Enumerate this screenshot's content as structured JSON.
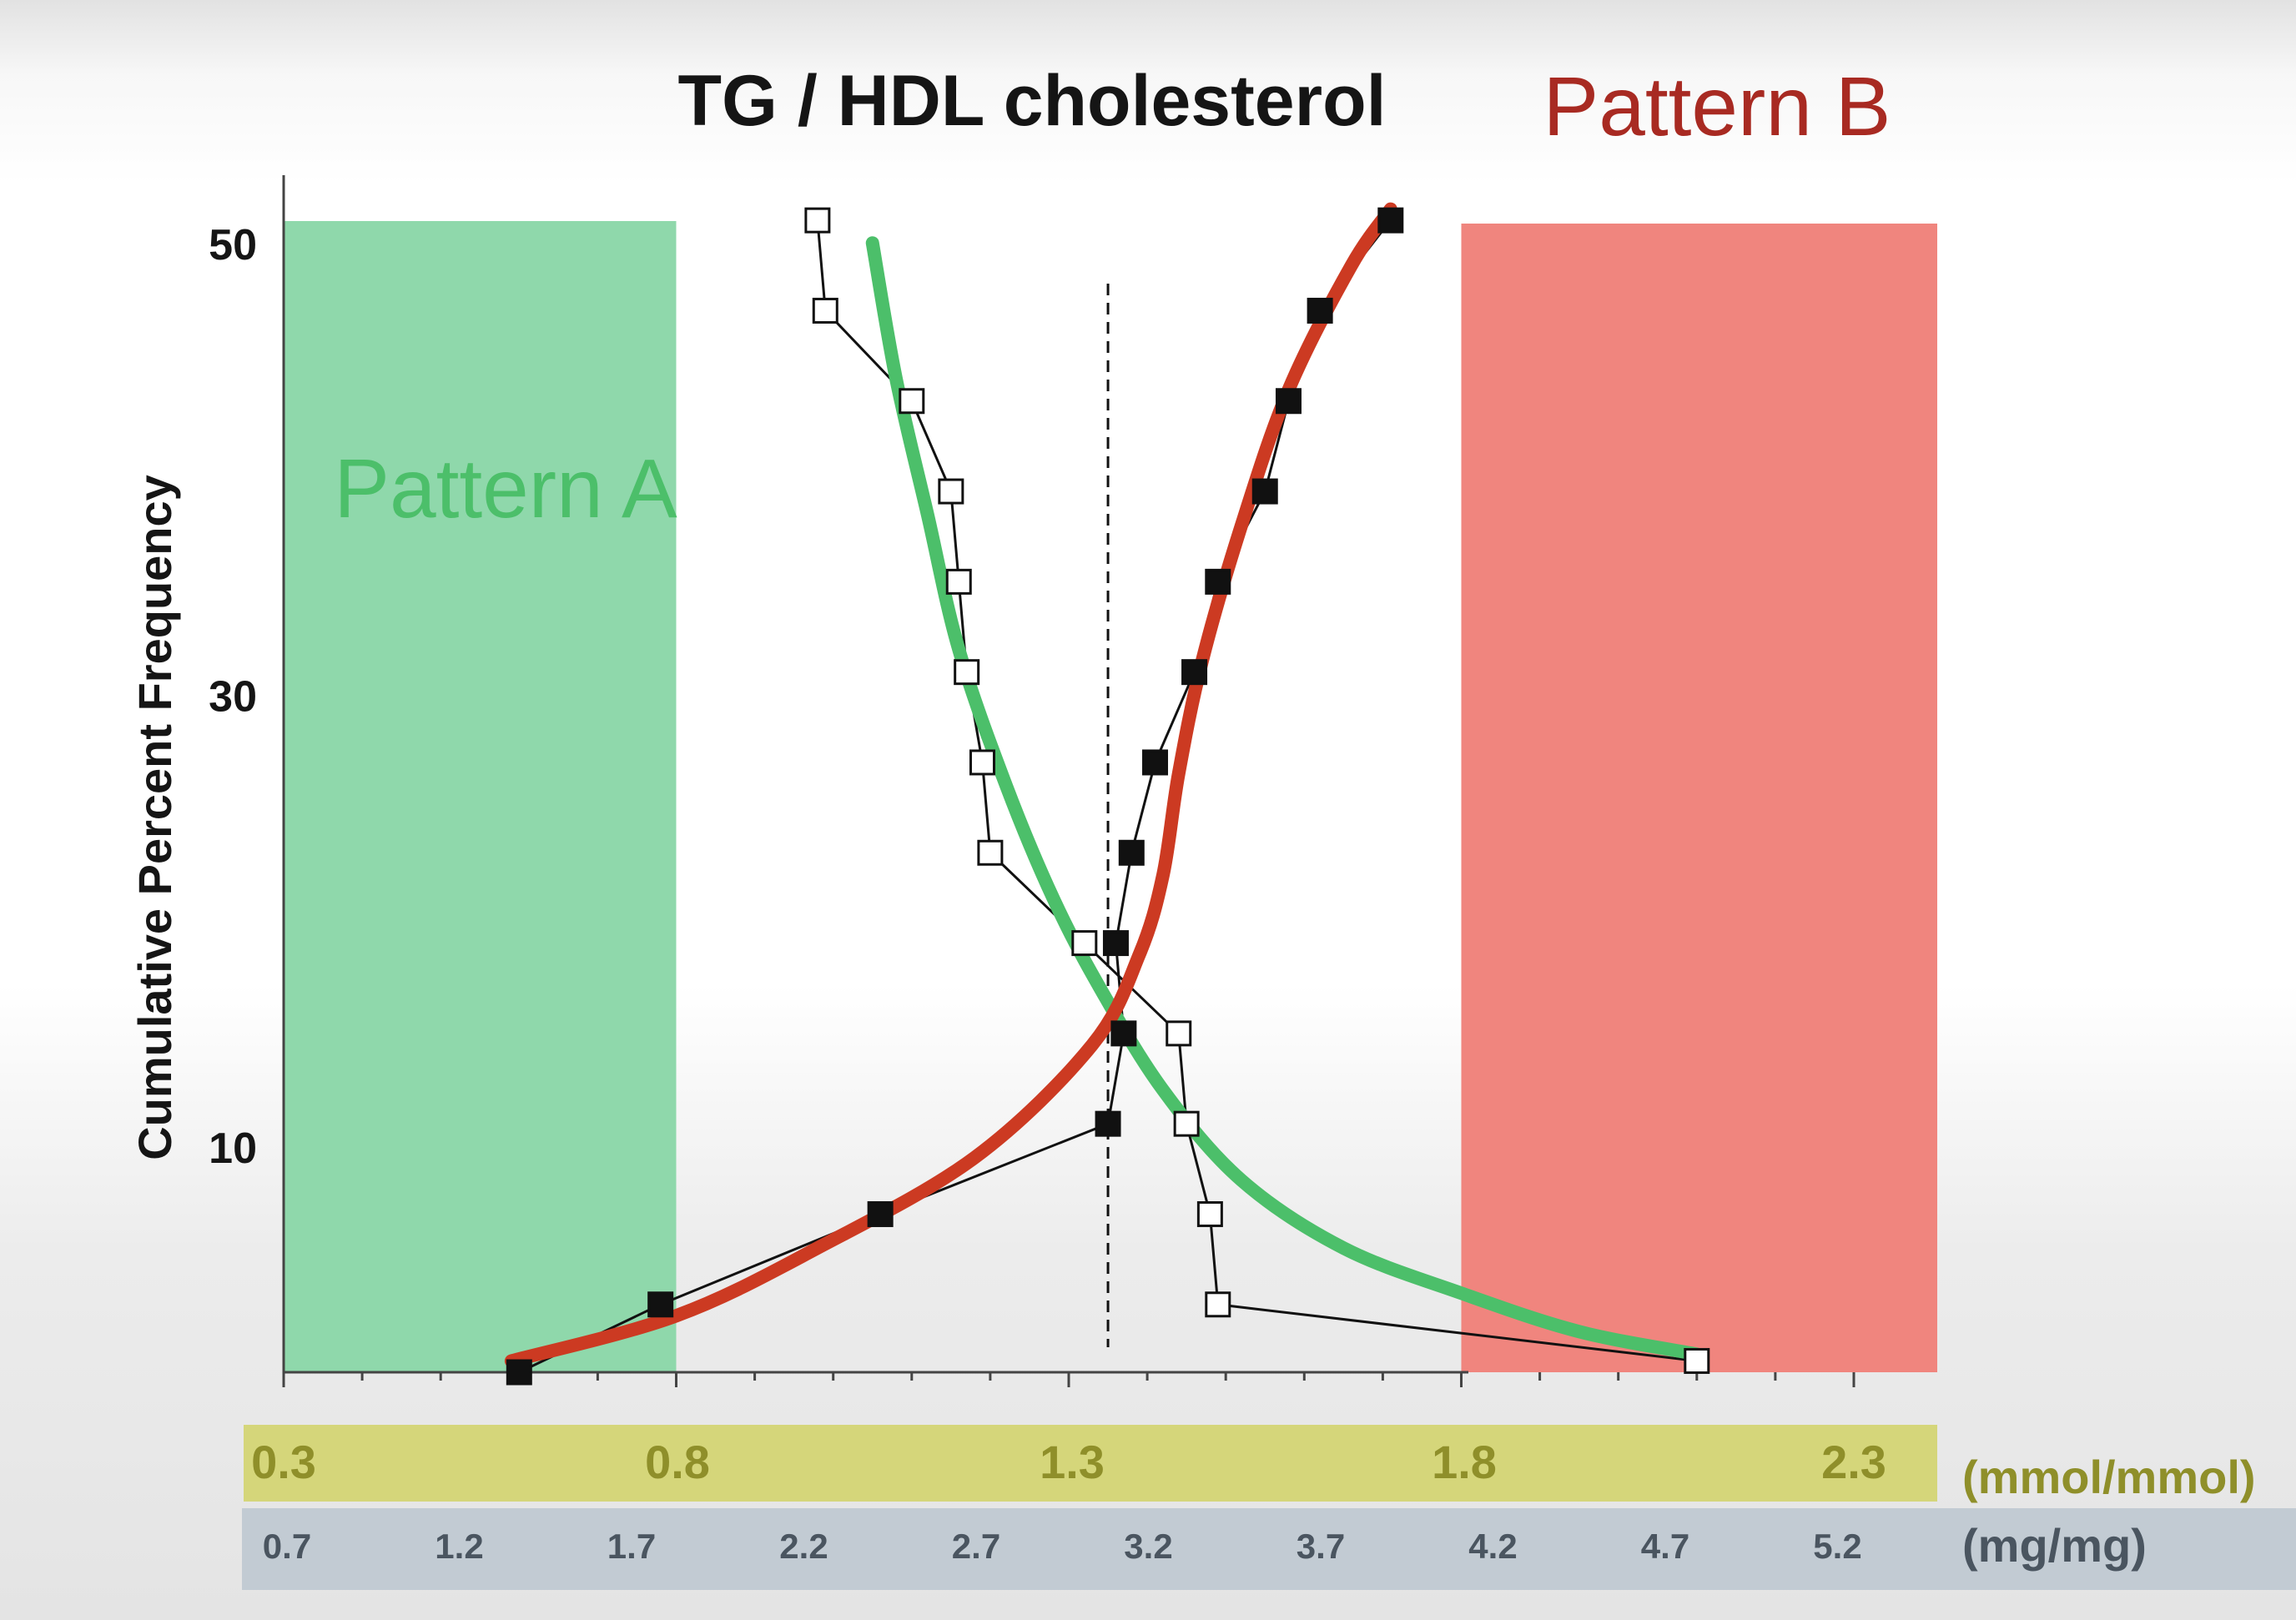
{
  "chart_data": {
    "type": "line",
    "title": "TG / HDL cholesterol",
    "ylabel": "Cumulative Percent Frequency",
    "xlabel": "",
    "y_ticks": [
      "10",
      "30",
      "50"
    ],
    "ylim": [
      0,
      53
    ],
    "xlim": [
      0.3,
      2.3
    ],
    "x_unit_mmol": "(mmol/mmol)",
    "x_unit_mg": "(mg/mg)",
    "x_ticks_mmol": [
      "0.3",
      "0.8",
      "1.3",
      "1.8",
      "2.3"
    ],
    "x_ticks_mg": [
      "0.7",
      "1.2",
      "1.7",
      "2.2",
      "2.7",
      "3.2",
      "3.7",
      "4.2",
      "4.7",
      "5.2"
    ],
    "pattern_a": {
      "label": "Pattern A",
      "x_range": [
        0.3,
        0.8
      ],
      "color": "#8fd8ab"
    },
    "pattern_b": {
      "label": "Pattern B",
      "x_range": [
        1.8,
        2.4
      ],
      "color": "#f0857e"
    },
    "reference_line_x": 1.35,
    "series": [
      {
        "marker": "open-square",
        "x": [
          0.98,
          0.99,
          1.1,
          1.15,
          1.16,
          1.17,
          1.19,
          1.2,
          1.32,
          1.44,
          1.45,
          1.48,
          1.49,
          2.1
        ],
        "y": [
          51,
          47,
          43,
          39,
          35,
          31,
          27,
          23,
          19,
          15,
          11,
          7,
          3,
          0.5
        ]
      },
      {
        "marker": "filled-square",
        "x": [
          0.6,
          0.78,
          1.06,
          1.35,
          1.37,
          1.36,
          1.38,
          1.41,
          1.46,
          1.49,
          1.55,
          1.58,
          1.62,
          1.71
        ],
        "y": [
          0,
          3,
          7,
          11,
          15,
          19,
          23,
          27,
          31,
          35,
          39,
          43,
          47,
          51
        ]
      }
    ],
    "fit_curves": [
      {
        "color": "#4cbf6a",
        "x": [
          1.05,
          1.08,
          1.12,
          1.16,
          1.22,
          1.28,
          1.34,
          1.42,
          1.52,
          1.65,
          1.8,
          1.95,
          2.1
        ],
        "y": [
          50,
          44,
          38,
          32,
          26,
          21,
          17,
          12.5,
          8.5,
          5.5,
          3.5,
          1.8,
          0.8
        ]
      },
      {
        "color": "#cc3a22",
        "x": [
          0.59,
          0.8,
          0.98,
          1.18,
          1.33,
          1.39,
          1.42,
          1.44,
          1.47,
          1.52,
          1.58,
          1.66,
          1.71
        ],
        "y": [
          0.5,
          2.5,
          5.5,
          9.5,
          14.5,
          18.5,
          22,
          26.5,
          31.5,
          37.5,
          43.5,
          49,
          51.5
        ]
      }
    ]
  }
}
